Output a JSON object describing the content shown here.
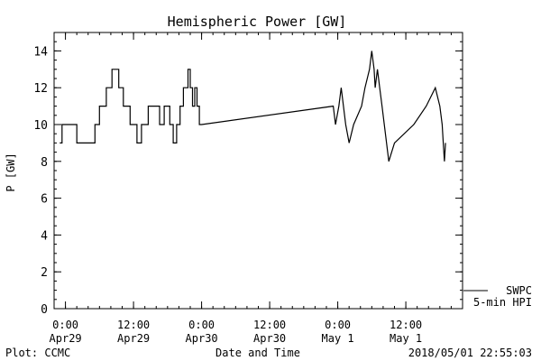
{
  "chart_data": {
    "type": "line",
    "title": "Hemispheric Power [GW]",
    "xlabel": "Date and Time",
    "ylabel": "P [GW]",
    "ylim": [
      0,
      15
    ],
    "xlim_hours": [
      -2,
      70
    ],
    "grid": false,
    "yticks": [
      0,
      2,
      4,
      6,
      8,
      10,
      12,
      14
    ],
    "xticks": [
      {
        "x": 0,
        "line1": "0:00",
        "line2": "Apr29"
      },
      {
        "x": 12,
        "line1": "12:00",
        "line2": "Apr29"
      },
      {
        "x": 24,
        "line1": "0:00",
        "line2": "Apr30"
      },
      {
        "x": 36,
        "line1": "12:00",
        "line2": "Apr30"
      },
      {
        "x": 48,
        "line1": "0:00",
        "line2": "May 1"
      },
      {
        "x": 60,
        "line1": "12:00",
        "line2": "May 1"
      }
    ],
    "legend": {
      "placement": "bottom-right",
      "entries": [
        "SWPC",
        "5-min HPI"
      ]
    },
    "series": [
      {
        "name": "SWPC",
        "color": "#000000",
        "x": [
          -1.0,
          -0.6,
          -0.6,
          -0.2,
          -0.2,
          2.0,
          2.0,
          5.2,
          5.2,
          6.0,
          6.0,
          7.2,
          7.2,
          8.2,
          8.2,
          9.4,
          9.4,
          10.2,
          10.2,
          11.4,
          11.4,
          12.6,
          12.6,
          13.4,
          13.4,
          14.6,
          14.6,
          16.6,
          16.6,
          17.4,
          17.4,
          18.4,
          18.4,
          19.0,
          19.0,
          19.6,
          19.6,
          20.2,
          20.2,
          20.8,
          20.8,
          21.6,
          21.6,
          22.0,
          22.0,
          22.4,
          22.4,
          22.8,
          22.8,
          23.2,
          23.2,
          23.6,
          23.6,
          24.0,
          24.0,
          47.2,
          47.2,
          47.6,
          47.6,
          48.2,
          48.2,
          48.6,
          48.6,
          49.0,
          49.0,
          49.4,
          49.4,
          50.0,
          50.0,
          50.8,
          50.8,
          52.2,
          52.2,
          52.8,
          52.8,
          53.6,
          53.6,
          54.0,
          54.0,
          54.4,
          54.4,
          54.6,
          54.6,
          55.0,
          55.0,
          55.4,
          55.4,
          55.8,
          55.8,
          56.2,
          56.2,
          56.6,
          56.6,
          57.0,
          57.0,
          58.0,
          58.0,
          61.4,
          61.4,
          63.6,
          63.6,
          65.2,
          65.2,
          66.0,
          66.0,
          66.4,
          66.4,
          66.6,
          66.6,
          66.8,
          66.8,
          67.0,
          67.0
        ],
        "y": [
          9,
          9,
          10,
          10,
          10,
          10,
          9,
          9,
          10,
          10,
          11,
          11,
          12,
          12,
          13,
          13,
          12,
          12,
          11,
          11,
          10,
          10,
          9,
          9,
          10,
          10,
          11,
          11,
          10,
          10,
          11,
          11,
          10,
          10,
          9,
          9,
          10,
          10,
          11,
          11,
          12,
          12,
          13,
          13,
          12,
          12,
          11,
          11,
          12,
          12,
          11,
          11,
          10,
          10,
          10,
          11,
          11,
          10,
          10,
          11,
          11,
          12,
          12,
          11,
          11,
          10,
          10,
          9,
          9,
          10,
          10,
          11,
          11,
          12,
          12,
          13,
          13,
          14,
          14,
          13,
          13,
          12,
          12,
          13,
          13,
          12,
          12,
          11,
          11,
          10,
          10,
          9,
          9,
          8,
          8,
          9,
          9,
          10,
          10,
          11,
          11,
          12,
          12,
          11,
          11,
          10,
          10,
          9,
          9,
          8,
          8,
          9,
          9
        ]
      }
    ]
  },
  "footer": {
    "left": "Plot: CCMC",
    "right": "2018/05/01 22:55:03"
  }
}
